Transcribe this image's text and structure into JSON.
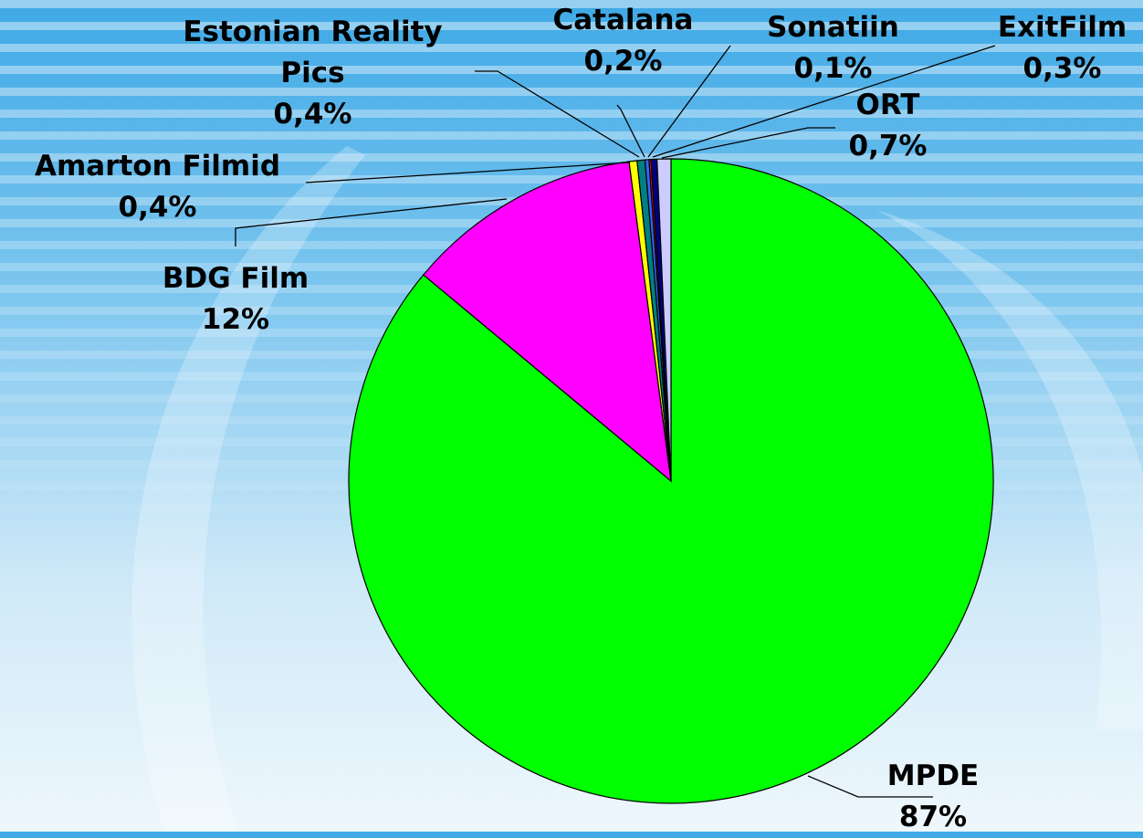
{
  "chart_data": {
    "type": "pie",
    "categories": [
      "MPDE",
      "BDG Film",
      "Amarton Filmid",
      "Estonian Reality Pics",
      "Catalana",
      "Sonatiin",
      "ExitFilm",
      "ORT"
    ],
    "values": [
      87,
      12,
      0.4,
      0.4,
      0.2,
      0.1,
      0.3,
      0.7
    ],
    "value_labels": [
      "87%",
      "12%",
      "0,4%",
      "0,4%",
      "0,2%",
      "0,1%",
      "0,3%",
      "0,7%"
    ],
    "colors": [
      "#00ff00",
      "#ff00ff",
      "#ffff00",
      "#008080",
      "#3366ff",
      "#ff0000",
      "#000080",
      "#ccccff"
    ]
  }
}
